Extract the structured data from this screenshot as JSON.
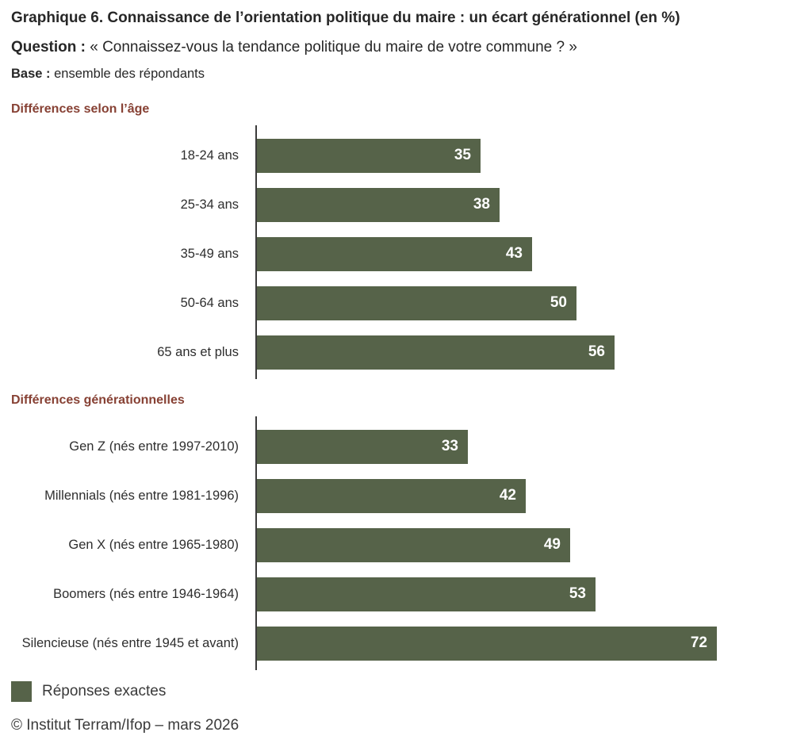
{
  "header": {
    "title_prefix": "Graphique 6.",
    "title_rest": "Connaissance de l’orientation politique du maire : un écart générationnel (en %)",
    "question_label": "Question :",
    "question_text": "« Connaissez-vous la tendance politique du maire de votre commune ? »",
    "base_label": "Base :",
    "base_text": "ensemble des répondants"
  },
  "chart_data": {
    "type": "bar",
    "orientation": "horizontal",
    "unit": "%",
    "series_name": "Réponses exactes",
    "xlim": [
      0,
      87
    ],
    "grid": false,
    "legend_position": "bottom-left",
    "sections": [
      {
        "title": "Différences selon l’âge",
        "categories": [
          "18-24 ans",
          "25-34 ans",
          "35-49 ans",
          "50-64 ans",
          "65 ans et plus"
        ],
        "values": [
          35,
          38,
          43,
          50,
          56
        ]
      },
      {
        "title": "Différences générationnelles",
        "categories": [
          "Gen Z (nés entre 1997-2010)",
          "Millennials (nés entre 1981-1996)",
          "Gen X (nés entre 1965-1980)",
          "Boomers (nés entre 1946-1964)",
          "Silencieuse (nés entre 1945 et avant)"
        ],
        "values": [
          33,
          42,
          49,
          53,
          72
        ]
      }
    ]
  },
  "legend": {
    "label": "Réponses exactes"
  },
  "footer": {
    "credit": "© Institut Terram/Ifop – mars 2026"
  },
  "colors": {
    "bar": "#566349",
    "section_heading": "#874134",
    "text": "#272727",
    "axis": "#3b3b3b",
    "value_label": "#ffffff"
  }
}
